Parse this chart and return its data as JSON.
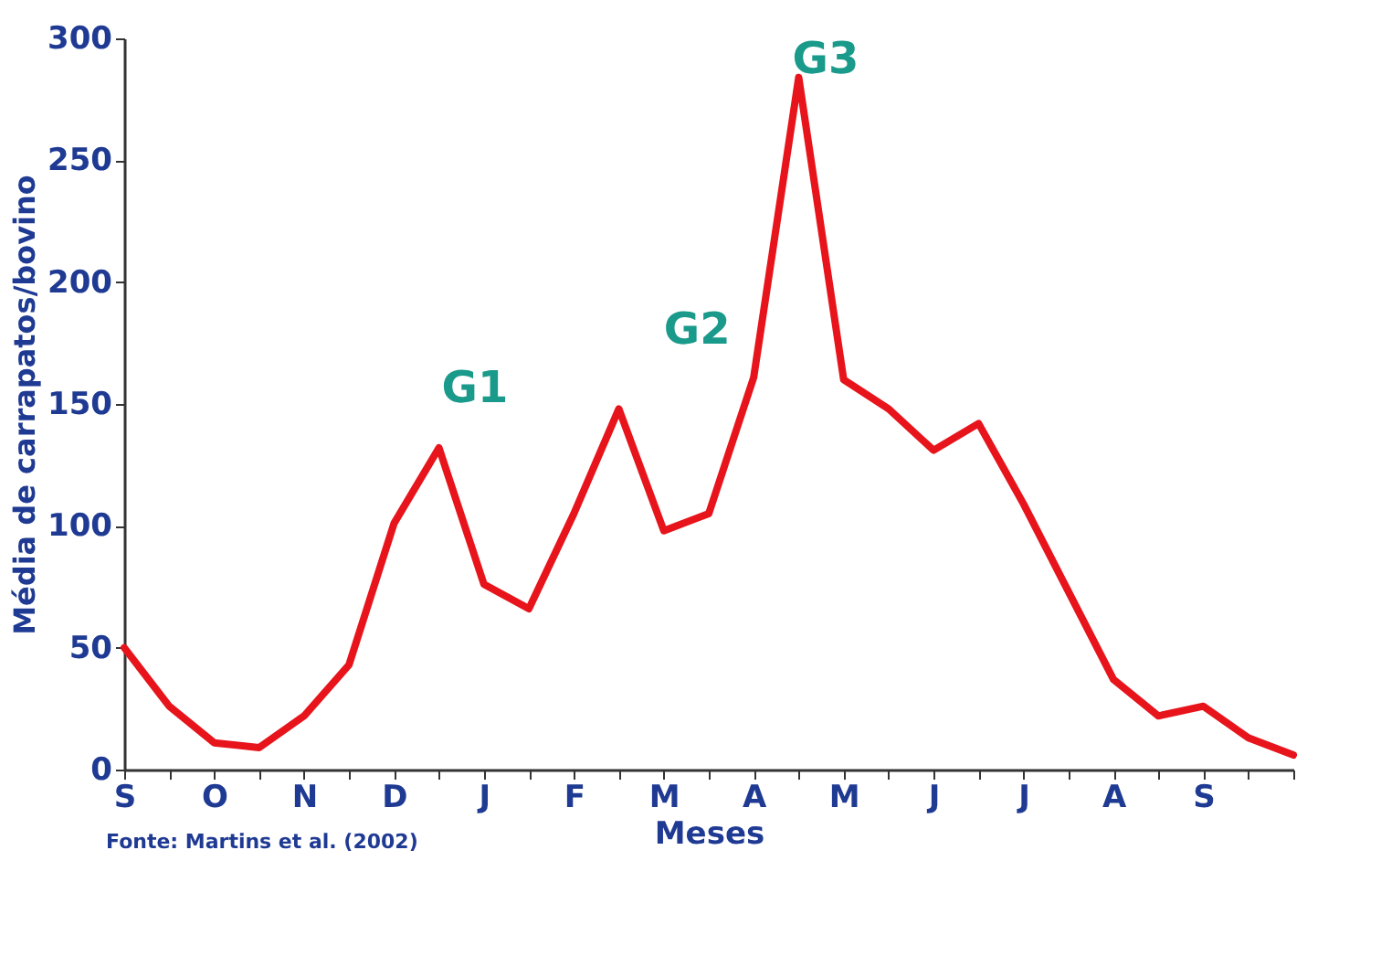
{
  "chart_data": {
    "type": "line",
    "xlabel": "Meses",
    "ylabel": "Média de carrapatos/bovino",
    "categories": [
      "S",
      null,
      "O",
      null,
      "N",
      null,
      "D",
      null,
      "J",
      null,
      "F",
      null,
      "M",
      null,
      "A",
      null,
      "M",
      null,
      "J",
      null,
      "J",
      null,
      "A",
      null,
      "S",
      null,
      null
    ],
    "series": [
      {
        "color": "#e8141c",
        "values": [
          50,
          26,
          11,
          9,
          22,
          43,
          101,
          132,
          76,
          66,
          105,
          148,
          98,
          105,
          161,
          284,
          160,
          148,
          131,
          142,
          109,
          73,
          37,
          22,
          26,
          13,
          6
        ]
      }
    ],
    "ylim": [
      0,
      300
    ],
    "yticks": [
      0,
      50,
      100,
      150,
      200,
      250,
      300
    ],
    "grid": false,
    "marker": "none",
    "line_style": "solid",
    "annotations": [
      "G1",
      "G2",
      "G3",
      "Fonte: Martins et al. (2002)"
    ]
  }
}
